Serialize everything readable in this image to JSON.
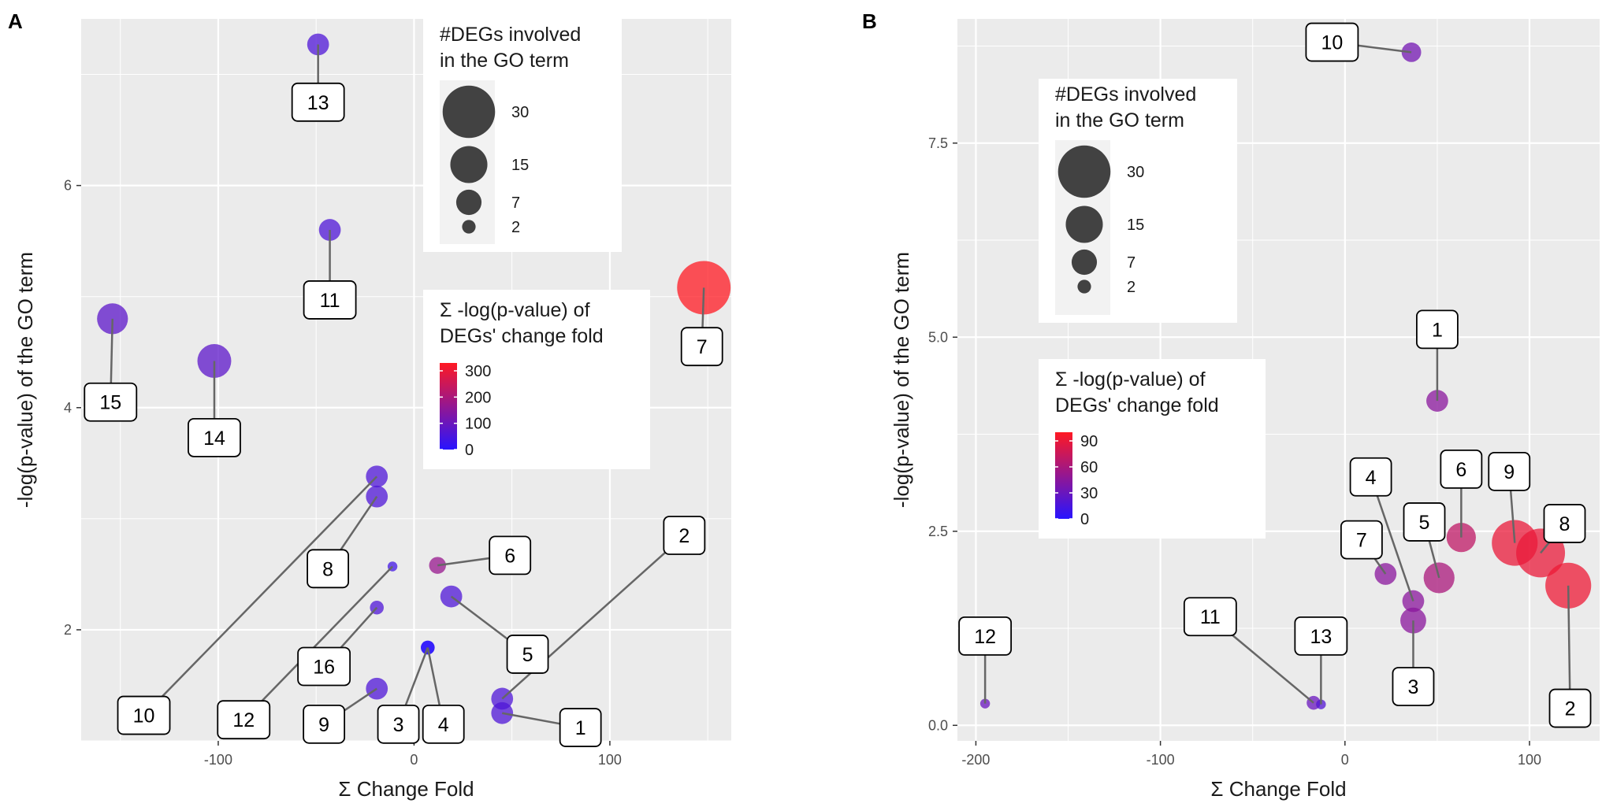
{
  "chart_data": [
    {
      "panel": "A",
      "type": "scatter",
      "xlabel": "Σ Change Fold",
      "ylabel": "-log(p-value) of the GO term",
      "xlim": [
        -170,
        162
      ],
      "ylim": [
        1.0,
        7.5
      ],
      "xticks": [
        -100,
        0,
        100
      ],
      "yticks": [
        2,
        4,
        6
      ],
      "xtick_labels": [
        "-100",
        "0",
        "100"
      ],
      "ytick_labels": [
        "2",
        "4",
        "6"
      ],
      "size_legend": {
        "title": [
          "#DEGs involved",
          "in the GO term"
        ],
        "values": [
          30,
          15,
          7,
          2
        ],
        "labels": [
          "30",
          "15",
          "7",
          "2"
        ]
      },
      "color_legend": {
        "title": [
          "Σ -log(p-value) of",
          "DEGs' change fold"
        ],
        "range": [
          0,
          330
        ],
        "ticks": [
          0,
          100,
          200,
          300
        ],
        "tick_labels": [
          "0",
          "100",
          "200",
          "300"
        ]
      },
      "points": [
        {
          "id": "1",
          "x": 45,
          "y": 1.25,
          "size": 5,
          "color": 60,
          "label_x": 85,
          "label_y": 1.12
        },
        {
          "id": "2",
          "x": 45,
          "y": 1.38,
          "size": 5,
          "color": 60,
          "label_x": 138,
          "label_y": 2.85
        },
        {
          "id": "3",
          "x": 7,
          "y": 1.84,
          "size": 2,
          "color": 5,
          "label_x": -8,
          "label_y": 1.15
        },
        {
          "id": "4",
          "x": 7,
          "y": 1.84,
          "size": 2,
          "color": 5,
          "label_x": 15,
          "label_y": 1.15
        },
        {
          "id": "5",
          "x": 19,
          "y": 2.3,
          "size": 5,
          "color": 60,
          "label_x": 58,
          "label_y": 1.78
        },
        {
          "id": "6",
          "x": 12,
          "y": 2.58,
          "size": 3,
          "color": 170,
          "label_x": 49,
          "label_y": 2.67
        },
        {
          "id": "7",
          "x": 148,
          "y": 5.08,
          "size": 30,
          "color": 330,
          "label_x": 147,
          "label_y": 4.55
        },
        {
          "id": "8",
          "x": -19,
          "y": 3.2,
          "size": 5,
          "color": 60,
          "label_x": -44,
          "label_y": 2.55
        },
        {
          "id": "9",
          "x": -19,
          "y": 1.47,
          "size": 5,
          "color": 60,
          "label_x": -46,
          "label_y": 1.15
        },
        {
          "id": "10",
          "x": -19,
          "y": 3.38,
          "size": 5,
          "color": 60,
          "label_x": -138,
          "label_y": 1.23
        },
        {
          "id": "11",
          "x": -43,
          "y": 5.6,
          "size": 5,
          "color": 60,
          "label_x": -43,
          "label_y": 4.97
        },
        {
          "id": "12",
          "x": -11,
          "y": 2.57,
          "size": 1,
          "color": 40,
          "label_x": -87,
          "label_y": 1.19
        },
        {
          "id": "13",
          "x": -49,
          "y": 7.27,
          "size": 5,
          "color": 60,
          "label_x": -49,
          "label_y": 6.75
        },
        {
          "id": "14",
          "x": -102,
          "y": 4.42,
          "size": 12,
          "color": 80,
          "label_x": -102,
          "label_y": 3.73
        },
        {
          "id": "15",
          "x": -154,
          "y": 4.8,
          "size": 10,
          "color": 80,
          "label_x": -155,
          "label_y": 4.05
        },
        {
          "id": "16",
          "x": -19,
          "y": 2.2,
          "size": 2,
          "color": 60,
          "label_x": -46,
          "label_y": 1.67
        }
      ]
    },
    {
      "panel": "B",
      "type": "scatter",
      "xlabel": "Σ Change Fold",
      "ylabel": "-log(p-value) of the GO term",
      "xlim": [
        -210,
        138
      ],
      "ylim": [
        -0.2,
        9.1
      ],
      "xticks": [
        -200,
        -100,
        0,
        100
      ],
      "yticks": [
        0.0,
        2.5,
        5.0,
        7.5
      ],
      "xtick_labels": [
        "-200",
        "-100",
        "0",
        "100"
      ],
      "ytick_labels": [
        "0.0",
        "2.5",
        "5.0",
        "7.5"
      ],
      "size_legend": {
        "title": [
          "#DEGs involved",
          "in the GO term"
        ],
        "values": [
          30,
          15,
          7,
          2
        ],
        "labels": [
          "30",
          "15",
          "7",
          "2"
        ]
      },
      "color_legend": {
        "title": [
          "Σ -log(p-value) of",
          "DEGs' change fold"
        ],
        "range": [
          0,
          100
        ],
        "ticks": [
          0,
          30,
          60,
          90
        ],
        "tick_labels": [
          "0",
          "30",
          "60",
          "90"
        ]
      },
      "points": [
        {
          "id": "1",
          "x": 50,
          "y": 4.18,
          "size": 5,
          "color": 45,
          "label_x": 50,
          "label_y": 5.1
        },
        {
          "id": "2",
          "x": 121,
          "y": 1.8,
          "size": 22,
          "color": 92,
          "label_x": 122,
          "label_y": 0.22
        },
        {
          "id": "3",
          "x": 37,
          "y": 1.35,
          "size": 7,
          "color": 45,
          "label_x": 37,
          "label_y": 0.5
        },
        {
          "id": "4",
          "x": 37,
          "y": 1.6,
          "size": 5,
          "color": 45,
          "label_x": 14,
          "label_y": 3.2
        },
        {
          "id": "5",
          "x": 51,
          "y": 1.9,
          "size": 10,
          "color": 60,
          "label_x": 43,
          "label_y": 2.62
        },
        {
          "id": "6",
          "x": 63,
          "y": 2.42,
          "size": 9,
          "color": 70,
          "label_x": 63,
          "label_y": 3.3
        },
        {
          "id": "7",
          "x": 22,
          "y": 1.95,
          "size": 5,
          "color": 45,
          "label_x": 9,
          "label_y": 2.39
        },
        {
          "id": "8",
          "x": 106,
          "y": 2.22,
          "size": 25,
          "color": 90,
          "label_x": 119,
          "label_y": 2.6
        },
        {
          "id": "9",
          "x": 92,
          "y": 2.35,
          "size": 22,
          "color": 90,
          "label_x": 89,
          "label_y": 3.27
        },
        {
          "id": "10",
          "x": 36,
          "y": 8.67,
          "size": 4,
          "color": 35,
          "label_x": -7,
          "label_y": 8.8
        },
        {
          "id": "11",
          "x": -17,
          "y": 0.29,
          "size": 2,
          "color": 30,
          "label_x": -73,
          "label_y": 1.4
        },
        {
          "id": "12",
          "x": -195,
          "y": 0.28,
          "size": 1,
          "color": 30,
          "label_x": -195,
          "label_y": 1.15
        },
        {
          "id": "13",
          "x": -13,
          "y": 0.27,
          "size": 1,
          "color": 20,
          "label_x": -13,
          "label_y": 1.15
        }
      ]
    }
  ]
}
